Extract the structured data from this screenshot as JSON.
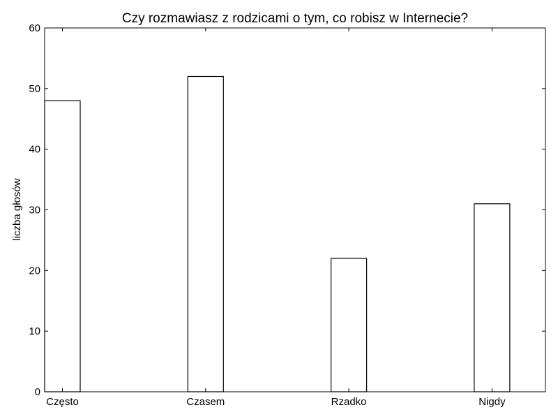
{
  "chart_data": {
    "type": "bar",
    "title": "Czy rozmawiasz z rodzicami o tym, co robisz w Internecie?",
    "xlabel": "",
    "ylabel": "liczba głosów",
    "categories": [
      "Często",
      "Czasem",
      "Rzadko",
      "Nigdy"
    ],
    "values": [
      48,
      52,
      22,
      31
    ],
    "ylim": [
      0,
      60
    ],
    "yticks": [
      0,
      10,
      20,
      30,
      40,
      50,
      60
    ],
    "grid": false,
    "bar_color": "#ffffff",
    "edge_color": "#000000"
  }
}
